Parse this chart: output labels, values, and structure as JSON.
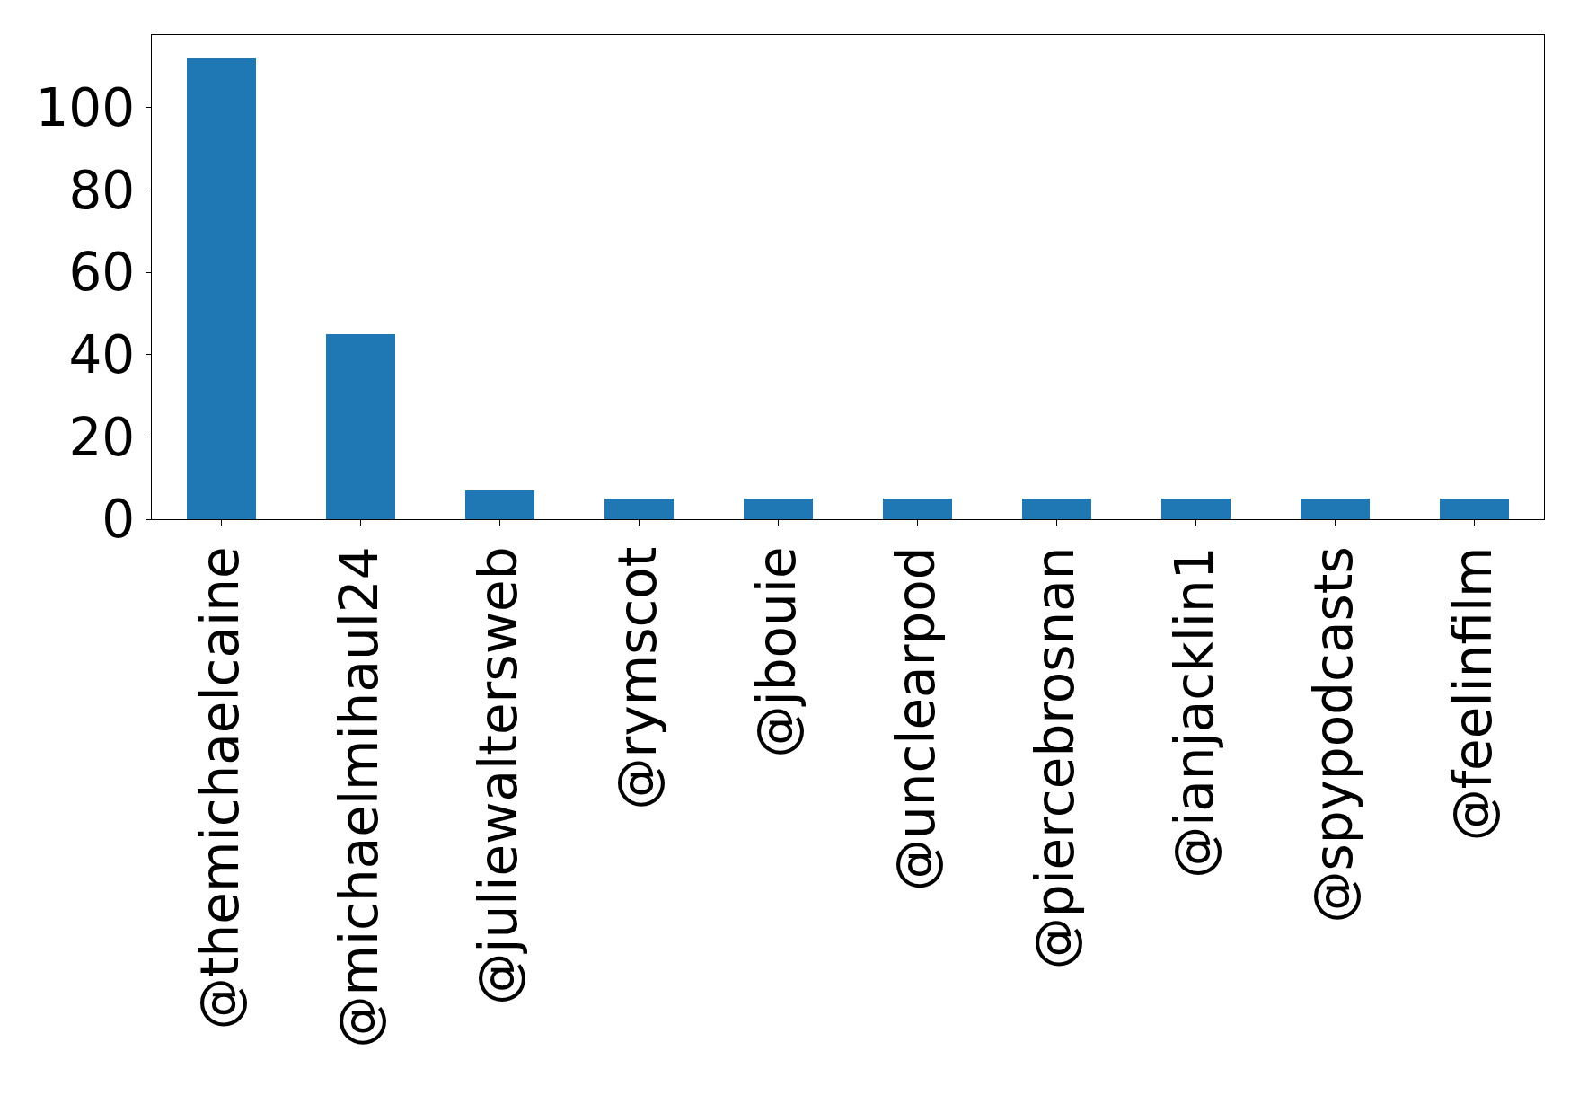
{
  "chart_data": {
    "type": "bar",
    "categories": [
      "@themichaelcaine",
      "@michaelmihaul24",
      "@juliewaltersweb",
      "@rymscot",
      "@jbouie",
      "@unclearpod",
      "@piercebrosnan",
      "@ianjacklin1",
      "@spypodcasts",
      "@feelinfilm"
    ],
    "values": [
      112,
      45,
      7,
      5,
      5,
      5,
      5,
      5,
      5,
      5
    ],
    "color": "#1f77b4",
    "ylim": [
      0,
      117.6
    ],
    "yticks": [
      0,
      20,
      40,
      60,
      80,
      100
    ]
  }
}
